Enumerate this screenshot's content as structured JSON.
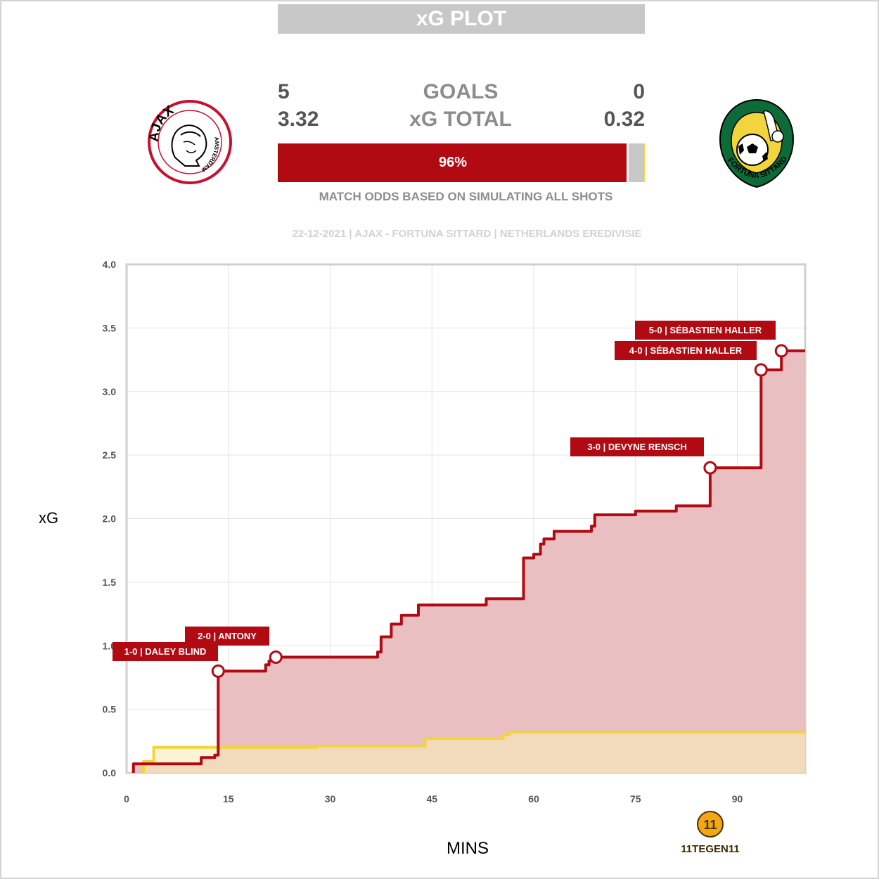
{
  "title": "xG PLOT",
  "home": {
    "name": "Ajax",
    "logo_text": "AJAX",
    "logo_subtext": "AMSTERDAM",
    "goals": "5",
    "xg_total": "3.32",
    "color": "#b10a12",
    "fill_color": "#e9bcbf"
  },
  "away": {
    "name": "Fortuna Sittard",
    "logo_text": "FORTUNA SITTARD",
    "goals": "0",
    "xg_total": "0.32",
    "color": "#f2d53c",
    "fill_color": "#f7ecb7"
  },
  "labels": {
    "goals": "GOALS",
    "xg_total": "xG TOTAL",
    "odds_caption": "MATCH ODDS BASED ON SIMULATING ALL SHOTS",
    "match_info": "22-12-2021 | AJAX - FORTUNA SITTARD | NETHERLANDS EREDIVISIE",
    "brand": "11TEGEN11",
    "brand_mark": "11"
  },
  "odds": {
    "home_win": 96,
    "home_label": "96%",
    "draw": 4,
    "away_win": 0.4,
    "home_color": "#b10a12",
    "draw_color": "#c8c8c8",
    "away_color": "#f2d53c"
  },
  "chart_data": {
    "type": "line",
    "xlabel": "MINS",
    "ylabel": "xG",
    "xlim": [
      0,
      100
    ],
    "ylim": [
      0,
      4.0
    ],
    "x_ticks": [
      "0",
      "15",
      "30",
      "45",
      "60",
      "75",
      "90"
    ],
    "y_ticks": [
      "0.0",
      "0.5",
      "1.0",
      "1.5",
      "2.0",
      "2.5",
      "3.0",
      "3.5",
      "4.0"
    ],
    "grid": true,
    "series": [
      {
        "name": "Ajax",
        "color": "#b10a12",
        "steps": [
          [
            1,
            0.07
          ],
          [
            11,
            0.12
          ],
          [
            13,
            0.14
          ],
          [
            13.5,
            0.8
          ],
          [
            20.5,
            0.85
          ],
          [
            21,
            0.88
          ],
          [
            22,
            0.91
          ],
          [
            37,
            0.95
          ],
          [
            37.5,
            1.07
          ],
          [
            39,
            1.17
          ],
          [
            40.5,
            1.24
          ],
          [
            43,
            1.32
          ],
          [
            53,
            1.37
          ],
          [
            58.5,
            1.69
          ],
          [
            60,
            1.72
          ],
          [
            61,
            1.8
          ],
          [
            61.5,
            1.84
          ],
          [
            63,
            1.9
          ],
          [
            68.5,
            1.94
          ],
          [
            69,
            2.03
          ],
          [
            75,
            2.06
          ],
          [
            81,
            2.1
          ],
          [
            86,
            2.4
          ],
          [
            93.5,
            3.17
          ],
          [
            96.5,
            3.32
          ],
          [
            100,
            3.32
          ]
        ]
      },
      {
        "name": "Fortuna Sittard",
        "color": "#f2d53c",
        "steps": [
          [
            2.5,
            0.09
          ],
          [
            4,
            0.2
          ],
          [
            28,
            0.21
          ],
          [
            44,
            0.27
          ],
          [
            55.5,
            0.3
          ],
          [
            56.5,
            0.32
          ],
          [
            100,
            0.32
          ]
        ]
      }
    ],
    "goals": [
      {
        "minute": 13.5,
        "xg": 0.8,
        "label": "1-0 | DALEY BLIND"
      },
      {
        "minute": 22,
        "xg": 0.91,
        "label": "2-0 | ANTONY"
      },
      {
        "minute": 86,
        "xg": 2.4,
        "label": "3-0 | DEVYNE RENSCH"
      },
      {
        "minute": 93.5,
        "xg": 3.17,
        "label": "4-0 | SÉBASTIEN HALLER"
      },
      {
        "minute": 96.5,
        "xg": 3.32,
        "label": "5-0 | SÉBASTIEN HALLER"
      }
    ]
  }
}
